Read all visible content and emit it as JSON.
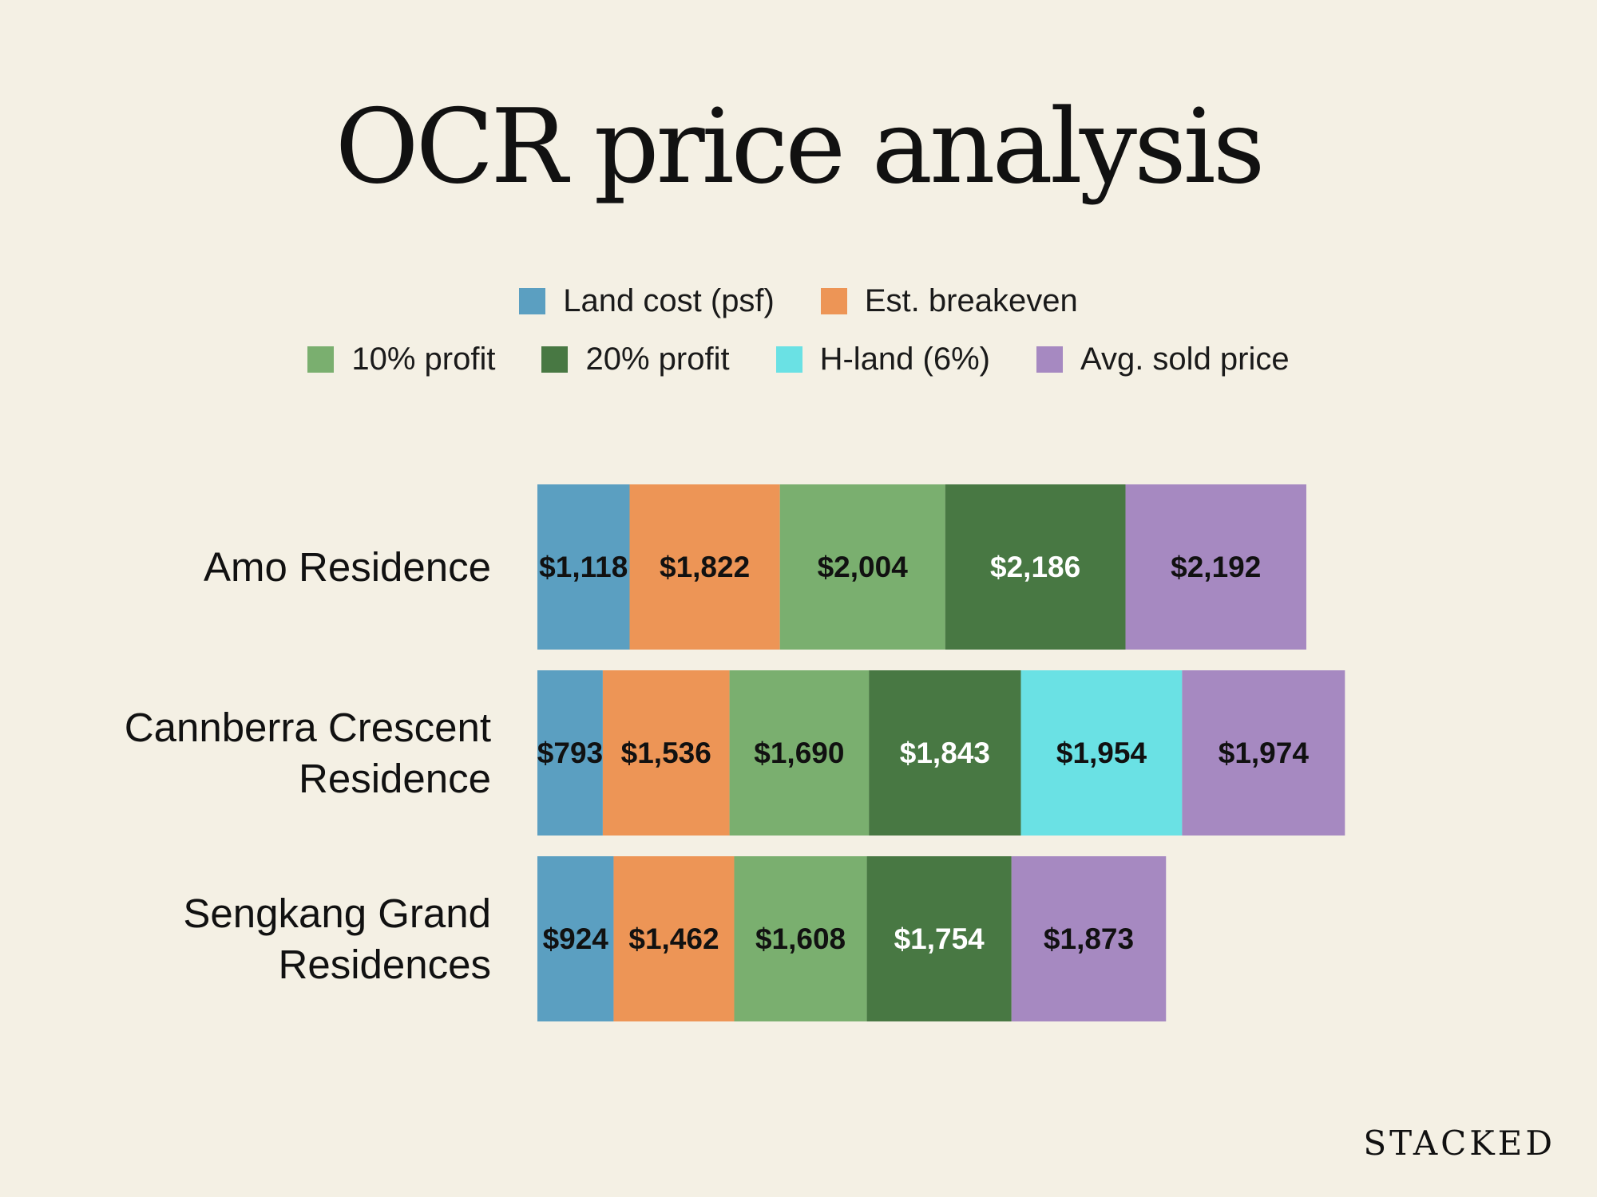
{
  "chart_data": {
    "type": "bar",
    "orientation": "horizontal-segmented",
    "title": "OCR price analysis",
    "legend": [
      {
        "key": "land",
        "label": "Land cost (psf)",
        "color": "#5b9fc1"
      },
      {
        "key": "breakeven",
        "label": "Est. breakeven",
        "color": "#ed9556"
      },
      {
        "key": "p10",
        "label": "10% profit",
        "color": "#7aaf6f"
      },
      {
        "key": "p20",
        "label": "20% profit",
        "color": "#487843"
      },
      {
        "key": "hland",
        "label": "H-land (6%)",
        "color": "#6ae1e4"
      },
      {
        "key": "sold",
        "label": "Avg. sold price",
        "color": "#a689c1"
      }
    ],
    "categories": [
      {
        "name": [
          "Amo Residence"
        ],
        "segments": [
          {
            "key": "land",
            "value": 1118,
            "label": "$1,118",
            "text_color": "#111111"
          },
          {
            "key": "breakeven",
            "value": 1822,
            "label": "$1,822",
            "text_color": "#111111"
          },
          {
            "key": "p10",
            "value": 2004,
            "label": "$2,004",
            "text_color": "#111111"
          },
          {
            "key": "p20",
            "value": 2186,
            "label": "$2,186",
            "text_color": "#ffffff"
          },
          {
            "key": "sold",
            "value": 2192,
            "label": "$2,192",
            "text_color": "#111111"
          }
        ]
      },
      {
        "name": [
          "Cannberra Crescent",
          "Residence"
        ],
        "segments": [
          {
            "key": "land",
            "value": 793,
            "label": "$793",
            "text_color": "#111111"
          },
          {
            "key": "breakeven",
            "value": 1536,
            "label": "$1,536",
            "text_color": "#111111"
          },
          {
            "key": "p10",
            "value": 1690,
            "label": "$1,690",
            "text_color": "#111111"
          },
          {
            "key": "p20",
            "value": 1843,
            "label": "$1,843",
            "text_color": "#ffffff"
          },
          {
            "key": "hland",
            "value": 1954,
            "label": "$1,954",
            "text_color": "#111111"
          },
          {
            "key": "sold",
            "value": 1974,
            "label": "$1,974",
            "text_color": "#111111"
          }
        ]
      },
      {
        "name": [
          "Sengkang Grand",
          "Residences"
        ],
        "segments": [
          {
            "key": "land",
            "value": 924,
            "label": "$924",
            "text_color": "#111111"
          },
          {
            "key": "breakeven",
            "value": 1462,
            "label": "$1,462",
            "text_color": "#111111"
          },
          {
            "key": "p10",
            "value": 1608,
            "label": "$1,608",
            "text_color": "#111111"
          },
          {
            "key": "p20",
            "value": 1754,
            "label": "$1,754",
            "text_color": "#ffffff"
          },
          {
            "key": "sold",
            "value": 1873,
            "label": "$1,873",
            "text_color": "#111111"
          }
        ]
      }
    ]
  },
  "brand": "STACKED"
}
